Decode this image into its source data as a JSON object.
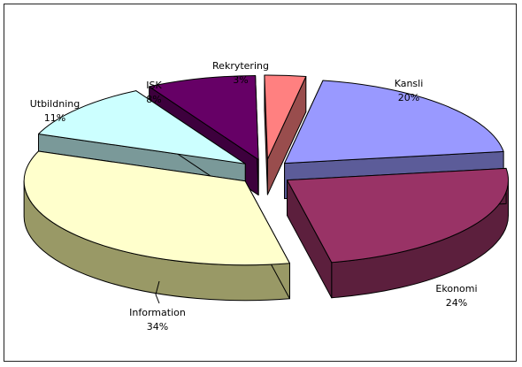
{
  "chart_data": {
    "type": "pie",
    "style": "3d-exploded",
    "title": "",
    "legend": "none",
    "slices": [
      {
        "label": "Kansli",
        "value_label": "20%",
        "value": 20,
        "color": "#9999ff",
        "side": "#5c5c99"
      },
      {
        "label": "Ekonomi",
        "value_label": "24%",
        "value": 24,
        "color": "#993366",
        "side": "#5c1f3d"
      },
      {
        "label": "Information",
        "value_label": "34%",
        "value": 34,
        "color": "#ffffcc",
        "side": "#999966"
      },
      {
        "label": "Utbildning",
        "value_label": "11%",
        "value": 11,
        "color": "#ccffff",
        "side": "#7a9999"
      },
      {
        "label": "ISK",
        "value_label": "8%",
        "value": 8,
        "color": "#660066",
        "side": "#3d003d"
      },
      {
        "label": "Rekrytering",
        "value_label": "3%",
        "value": 3,
        "color": "#ff8080",
        "side": "#994d4d"
      }
    ]
  }
}
